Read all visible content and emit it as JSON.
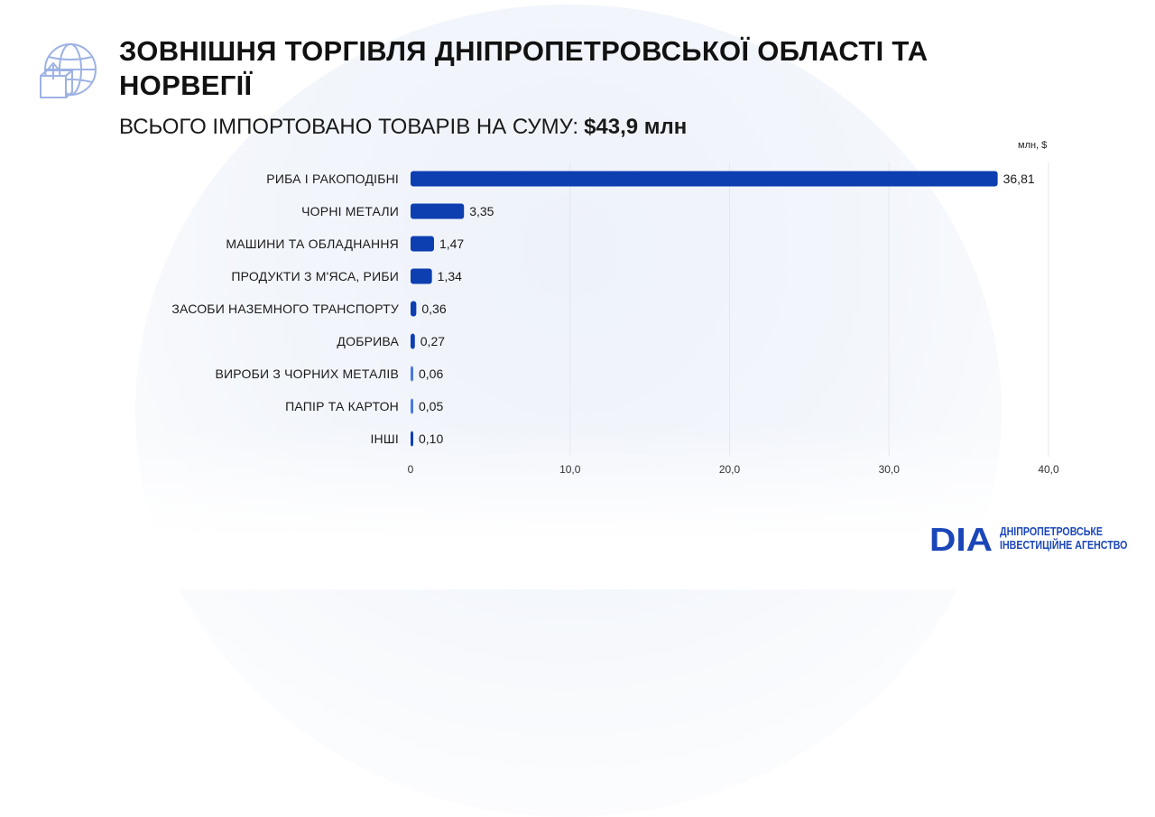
{
  "header": {
    "title": "ЗОВНІШНЯ ТОРГІВЛЯ ДНІПРОПЕТРОВСЬКОЇ ОБЛАСТІ ТА НОРВЕГІЇ",
    "subtitle_text": "ВСЬОГО ІМПОРТОВАНО ТОВАРІВ НА СУМУ:",
    "subtitle_total": "$43,9 млн",
    "icon": "globe-box-icon"
  },
  "chart_data": {
    "type": "bar",
    "orientation": "horizontal",
    "unit_label": "млн, $",
    "categories": [
      "РИБА І РАКОПОДІБНІ",
      "ЧОРНІ МЕТАЛИ",
      "МАШИНИ ТА ОБЛАДНАННЯ",
      "ПРОДУКТИ З М'ЯСА, РИБИ",
      "ЗАСОБИ НАЗЕМНОГО ТРАНСПОРТУ",
      "ДОБРИВА",
      "ВИРОБИ З ЧОРНИХ МЕТАЛІВ",
      "ПАПІР ТА КАРТОН",
      "ІНШІ"
    ],
    "values": [
      36.81,
      3.35,
      1.47,
      1.34,
      0.36,
      0.27,
      0.06,
      0.05,
      0.1
    ],
    "value_labels": [
      "36,81",
      "3,35",
      "1,47",
      "1,34",
      "0,36",
      "0,27",
      "0,06",
      "0,05",
      "0,10"
    ],
    "xlim": [
      0,
      40
    ],
    "x_ticks": [
      0,
      10,
      20,
      30,
      40
    ],
    "x_tick_labels": [
      "0",
      "10,0",
      "20,0",
      "30,0",
      "40,0"
    ],
    "grid": true,
    "colors": {
      "bar": "#0d3fb0",
      "bar_light": "#4a78e0",
      "grid": "#e6e8ee"
    }
  },
  "logo": {
    "mark": "DIA",
    "line1": "ДНІПРОПЕТРОВСЬКЕ",
    "line2": "ІНВЕСТИЦІЙНЕ АГЕНСТВО",
    "color": "#1b46b8"
  }
}
